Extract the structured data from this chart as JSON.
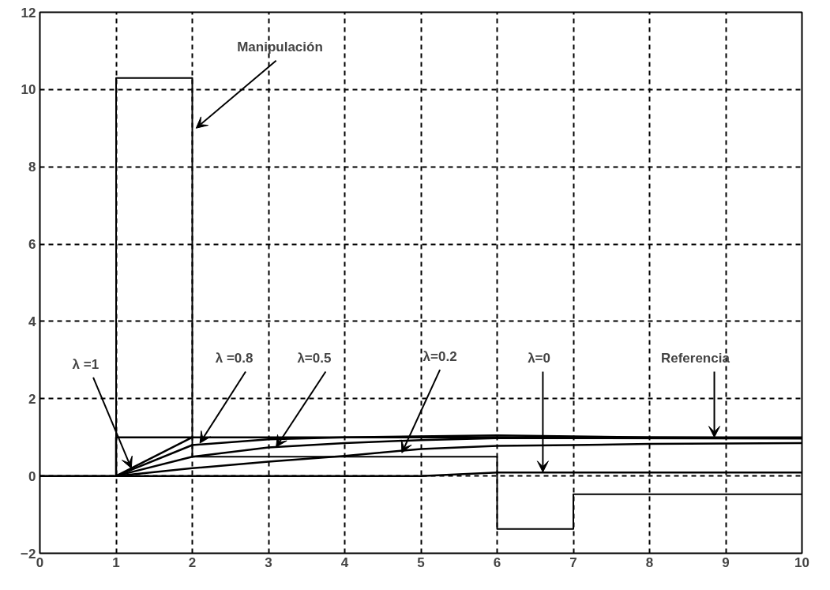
{
  "chart_data": {
    "type": "line",
    "xlim": [
      0,
      10
    ],
    "ylim": [
      -2,
      12
    ],
    "xticks": [
      0,
      1,
      2,
      3,
      4,
      5,
      6,
      7,
      8,
      9,
      10
    ],
    "yticks": [
      -2,
      0,
      2,
      4,
      6,
      8,
      10,
      12
    ],
    "grid": true,
    "marker": "none",
    "line_style": "solid",
    "series": [
      {
        "color": "#000000",
        "x": [
          0,
          1,
          1,
          2,
          2,
          6,
          6,
          7,
          7,
          10
        ],
        "values": [
          0,
          0,
          10.3,
          10.3,
          0.5,
          0.5,
          -1.37,
          -1.37,
          -0.47,
          -0.47
        ]
      },
      {
        "color": "#000000",
        "x": [
          0,
          1,
          1,
          10
        ],
        "values": [
          0,
          0,
          1,
          1
        ]
      },
      {
        "color": "#000000",
        "x": [
          1,
          2
        ],
        "values": [
          0,
          1
        ]
      },
      {
        "color": "#000000",
        "x": [
          1,
          2,
          3,
          4,
          6,
          8,
          10
        ],
        "values": [
          0,
          0.8,
          0.95,
          1.0,
          1.05,
          1.0,
          0.98
        ]
      },
      {
        "color": "#000000",
        "x": [
          1,
          2,
          3,
          4,
          5,
          6,
          10
        ],
        "values": [
          0,
          0.5,
          0.74,
          0.85,
          0.93,
          0.98,
          0.97
        ]
      },
      {
        "color": "#000000",
        "x": [
          1,
          2,
          3,
          4,
          5,
          6,
          7,
          8,
          10
        ],
        "values": [
          0,
          0.2,
          0.37,
          0.52,
          0.7,
          0.78,
          0.8,
          0.83,
          0.85
        ]
      },
      {
        "color": "#000000",
        "x": [
          1,
          5,
          6,
          10
        ],
        "values": [
          0,
          0,
          0.09,
          0.09
        ]
      }
    ],
    "annotations": [
      {
        "text": "Manipulación",
        "x": 2.05,
        "y": 9.0
      },
      {
        "text": "λ =1",
        "x": 1.2,
        "y": 0.2
      },
      {
        "text": "λ =0.8",
        "x": 2.1,
        "y": 0.85
      },
      {
        "text": "λ=0.5",
        "x": 3.1,
        "y": 0.75
      },
      {
        "text": "λ=0.2",
        "x": 4.75,
        "y": 0.6
      },
      {
        "text": "λ=0",
        "x": 6.6,
        "y": 0.1
      },
      {
        "text": "Referencia",
        "x": 8.85,
        "y": 1.0
      }
    ]
  }
}
